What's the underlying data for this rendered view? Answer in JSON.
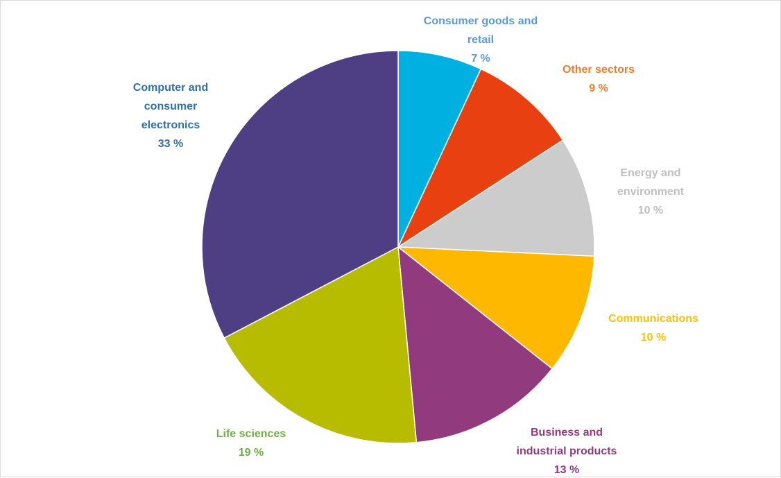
{
  "chart_data": {
    "type": "pie",
    "title": "",
    "unit": "%",
    "start_angle_deg": 0,
    "direction": "clockwise",
    "slices": [
      {
        "category": "Consumer goods and retail",
        "label_lines": [
          "Consumer goods and",
          "retail"
        ],
        "value_text": "7 %",
        "value": 7,
        "color": "#00B0E0",
        "label_color": "#5B9BD5"
      },
      {
        "category": "Other sectors",
        "label_lines": [
          "Other sectors"
        ],
        "value_text": "9 %",
        "value": 9,
        "color": "#E84010",
        "label_color": "#ED7D31"
      },
      {
        "category": "Energy and environment",
        "label_lines": [
          "Energy and",
          "environment"
        ],
        "value_text": "10 %",
        "value": 10,
        "color": "#CCCCCC",
        "label_color": "#BFBFBF"
      },
      {
        "category": "Communications",
        "label_lines": [
          "Communications"
        ],
        "value_text": "10 %",
        "value": 10,
        "color": "#FFB800",
        "label_color": "#FFC000"
      },
      {
        "category": "Business and industrial products",
        "label_lines": [
          "Business and",
          "industrial products"
        ],
        "value_text": "13 %",
        "value": 13,
        "color": "#913A7E",
        "label_color": "#913A7E"
      },
      {
        "category": "Life sciences",
        "label_lines": [
          "Life sciences"
        ],
        "value_text": "19 %",
        "value": 19,
        "color": "#B8BC00",
        "label_color": "#70AD47"
      },
      {
        "category": "Computer and consumer electronics",
        "label_lines": [
          "Computer and",
          "consumer",
          "electronics"
        ],
        "value_text": "33 %",
        "value": 33,
        "color": "#4E3F84",
        "label_color": "#2E6FAC"
      }
    ]
  }
}
